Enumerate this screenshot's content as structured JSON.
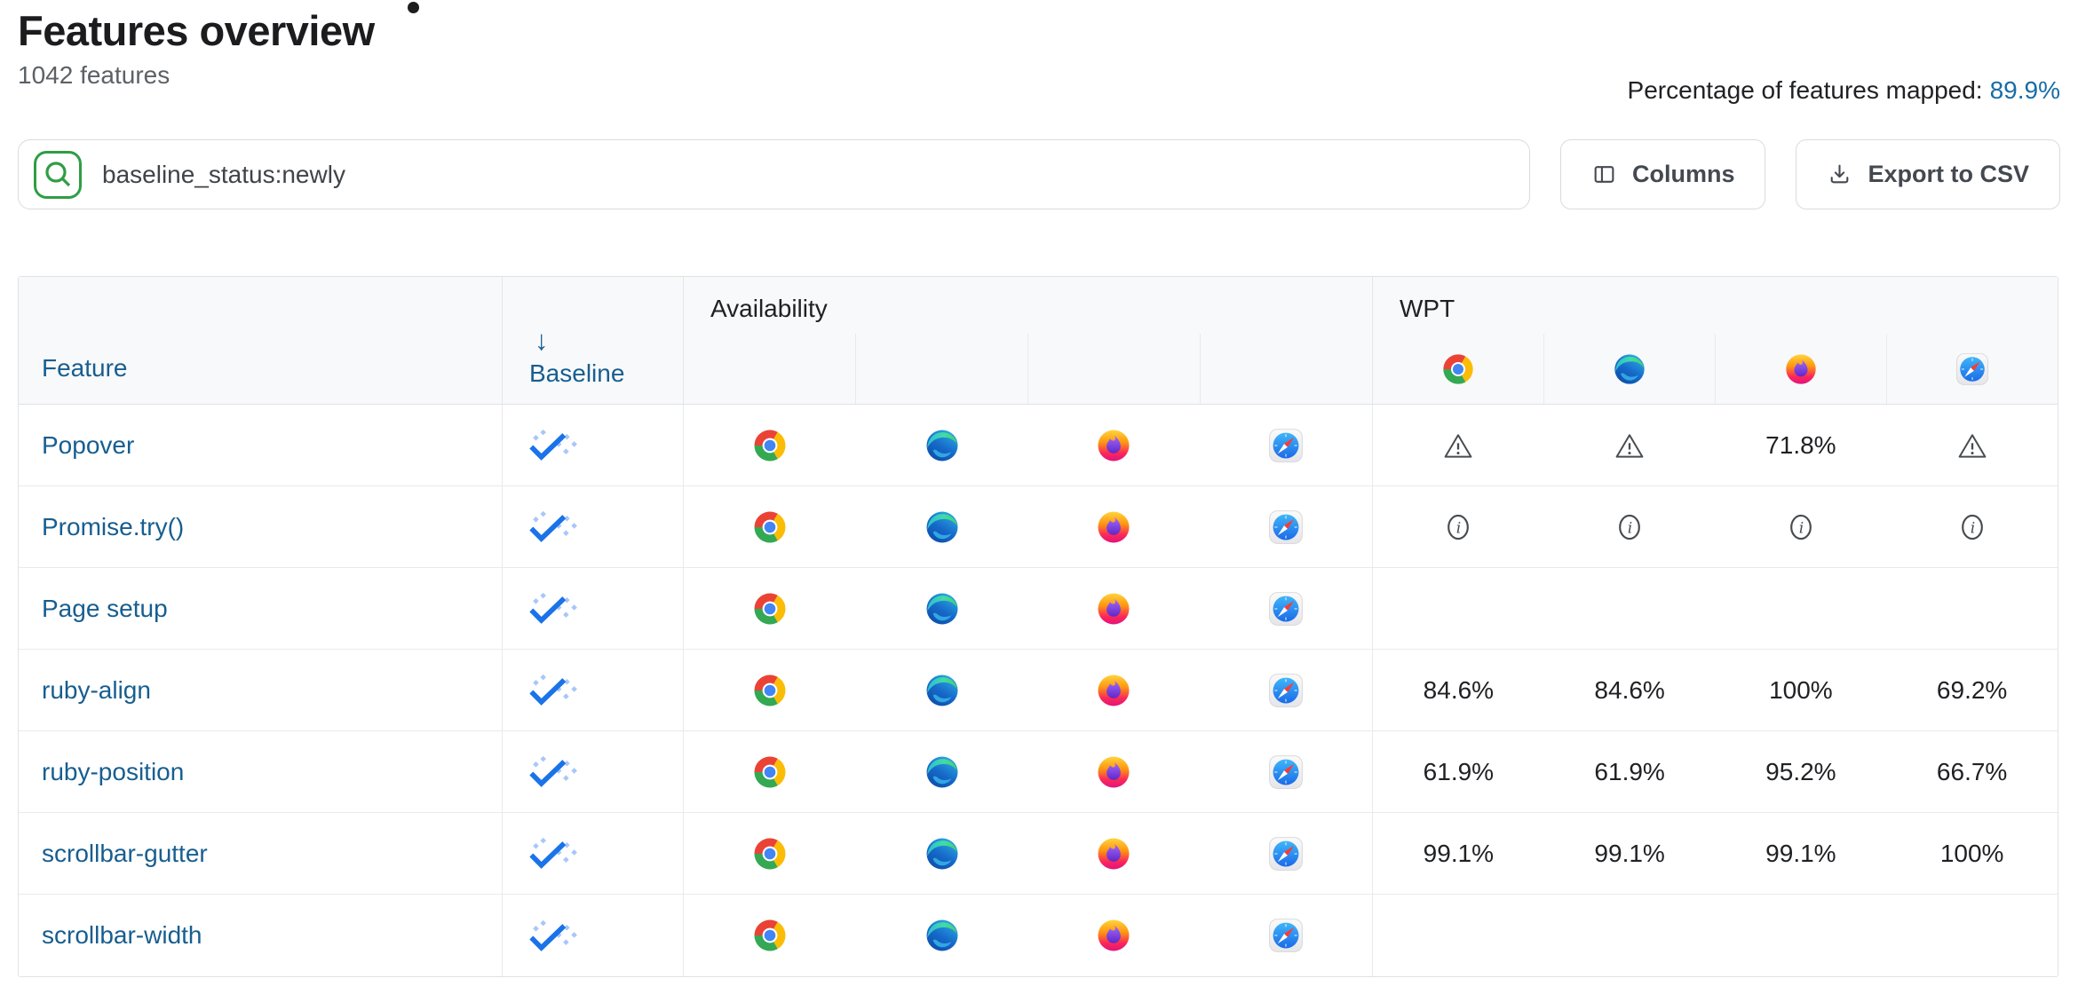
{
  "page": {
    "title": "Features overview",
    "subtitle": "1042 features",
    "mapped_label": "Percentage of features mapped:",
    "mapped_value": "89.9%"
  },
  "toolbar": {
    "search_value": "baseline_status:newly",
    "columns_label": "Columns",
    "export_label": "Export to CSV"
  },
  "table": {
    "headers": {
      "feature": "Feature",
      "baseline": "Baseline",
      "baseline_sort_arrow": "↓",
      "availability": "Availability",
      "wpt": "WPT"
    },
    "browsers": [
      "Chrome",
      "Edge",
      "Firefox",
      "Safari"
    ],
    "rows": [
      {
        "feature": "Popover",
        "baseline": "newly",
        "availability": [
          "Chrome",
          "Edge",
          "Firefox",
          "Safari"
        ],
        "wpt": [
          "warning",
          "warning",
          "71.8%",
          "warning"
        ]
      },
      {
        "feature": "Promise.try()",
        "baseline": "newly",
        "availability": [
          "Chrome",
          "Edge",
          "Firefox",
          "Safari"
        ],
        "wpt": [
          "info",
          "info",
          "info",
          "info"
        ]
      },
      {
        "feature": "Page setup",
        "baseline": "newly",
        "availability": [
          "Chrome",
          "Edge",
          "Firefox",
          "Safari"
        ],
        "wpt": [
          "",
          "",
          "",
          ""
        ]
      },
      {
        "feature": "ruby-align",
        "baseline": "newly",
        "availability": [
          "Chrome",
          "Edge",
          "Firefox",
          "Safari"
        ],
        "wpt": [
          "84.6%",
          "84.6%",
          "100%",
          "69.2%"
        ]
      },
      {
        "feature": "ruby-position",
        "baseline": "newly",
        "availability": [
          "Chrome",
          "Edge",
          "Firefox",
          "Safari"
        ],
        "wpt": [
          "61.9%",
          "61.9%",
          "95.2%",
          "66.7%"
        ]
      },
      {
        "feature": "scrollbar-gutter",
        "baseline": "newly",
        "availability": [
          "Chrome",
          "Edge",
          "Firefox",
          "Safari"
        ],
        "wpt": [
          "99.1%",
          "99.1%",
          "99.1%",
          "100%"
        ]
      },
      {
        "feature": "scrollbar-width",
        "baseline": "newly",
        "availability": [
          "Chrome",
          "Edge",
          "Firefox",
          "Safari"
        ],
        "wpt": [
          "",
          "",
          "",
          ""
        ]
      }
    ]
  },
  "colors": {
    "link_blue": "#175e90",
    "mapped_link_blue": "#186da6",
    "baseline_check_blue": "#1a73e8",
    "baseline_dot_blue": "#a8c7fa",
    "search_icon_green": "#2e9e44",
    "header_bg": "#f8f9fa"
  }
}
